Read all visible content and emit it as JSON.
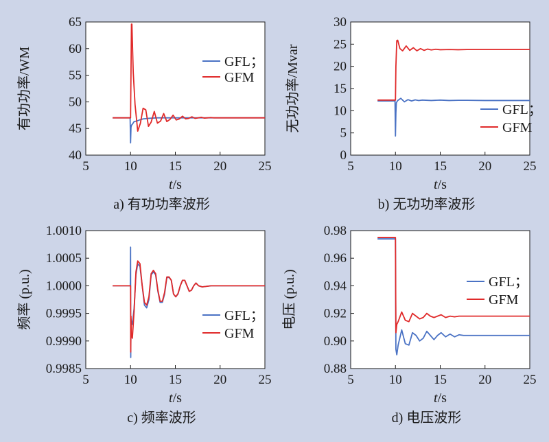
{
  "colors": {
    "background": "#cdd5e8",
    "plot_area": "#ffffff",
    "axis": "#1a1a1a",
    "GFL": "#4a72c4",
    "GFM": "#e02a2a"
  },
  "chart_data": [
    {
      "type": "line",
      "caption": "a) 有功功率波形",
      "xlabel_italic": "t",
      "xlabel_unit": "/s",
      "ylabel": "有功功率/WM",
      "xlim": [
        5,
        25
      ],
      "ylim": [
        40,
        65
      ],
      "xticks": [
        "5",
        "10",
        "15",
        "20",
        "25"
      ],
      "yticks": [
        "40",
        "45",
        "50",
        "55",
        "60",
        "65"
      ],
      "legend": [
        "GFL；",
        "GFM"
      ],
      "legend_position": "center-right",
      "series": [
        {
          "name": "GFL",
          "x": [
            8,
            9.95,
            10.0,
            10.05,
            10.1,
            10.2,
            10.4,
            10.7,
            11.0,
            11.4,
            12.0,
            13,
            14,
            15,
            16,
            17,
            18,
            19,
            20,
            25
          ],
          "y": [
            47,
            47,
            42.3,
            45.2,
            45.6,
            45.8,
            46.3,
            46.4,
            46.6,
            46.8,
            46.9,
            47.0,
            47.0,
            47.0,
            47.0,
            47.0,
            47.0,
            47.0,
            47.0,
            47.0
          ]
        },
        {
          "name": "GFM",
          "x": [
            8,
            9.95,
            10.0,
            10.1,
            10.15,
            10.3,
            10.5,
            10.8,
            11.1,
            11.4,
            11.7,
            12.0,
            12.3,
            12.65,
            13.0,
            13.35,
            13.7,
            14.05,
            14.4,
            14.75,
            15.1,
            15.45,
            15.8,
            16.15,
            16.5,
            16.85,
            17.2,
            17.55,
            17.9,
            18.25,
            18.6,
            18.95,
            19.3,
            20,
            25
          ],
          "y": [
            47,
            47,
            47,
            64.6,
            64.6,
            55.5,
            49.5,
            44.5,
            46.0,
            48.8,
            48.5,
            45.4,
            46.2,
            48.2,
            46.0,
            46.4,
            47.8,
            46.3,
            46.7,
            47.5,
            46.6,
            46.8,
            47.3,
            46.8,
            46.9,
            47.2,
            46.9,
            47.0,
            47.1,
            46.95,
            47.0,
            47.05,
            47.0,
            47.0,
            47.0
          ]
        }
      ]
    },
    {
      "type": "line",
      "caption": "b) 无功功率波形",
      "xlabel_italic": "t",
      "xlabel_unit": "/s",
      "ylabel": "无功功率/Mvar",
      "xlim": [
        5,
        25
      ],
      "ylim": [
        0,
        30
      ],
      "xticks": [
        "5",
        "10",
        "15",
        "20",
        "25"
      ],
      "yticks": [
        "0",
        "5",
        "10",
        "15",
        "20",
        "25",
        "30"
      ],
      "legend": [
        "GFL；",
        "GFM"
      ],
      "legend_position": "lower-right",
      "series": [
        {
          "name": "GFL",
          "x": [
            8,
            9.95,
            10.0,
            10.05,
            10.1,
            10.25,
            10.6,
            11.0,
            11.4,
            11.8,
            12.2,
            12.6,
            13,
            14,
            15,
            16,
            17,
            18,
            20,
            25
          ],
          "y": [
            12.2,
            12.2,
            4.3,
            9.5,
            11.8,
            12.3,
            12.8,
            12.0,
            12.5,
            12.2,
            12.45,
            12.3,
            12.4,
            12.3,
            12.4,
            12.3,
            12.35,
            12.35,
            12.3,
            12.3
          ]
        },
        {
          "name": "GFM",
          "x": [
            8,
            9.95,
            10.0,
            10.05,
            10.15,
            10.25,
            10.5,
            10.8,
            11.2,
            11.6,
            12.0,
            12.4,
            12.8,
            13.2,
            13.6,
            14.0,
            14.5,
            15,
            16,
            17,
            18,
            20,
            25
          ],
          "y": [
            12.4,
            12.4,
            12.4,
            20.0,
            25.8,
            25.9,
            24.0,
            23.5,
            24.6,
            23.6,
            24.2,
            23.5,
            24.0,
            23.6,
            23.9,
            23.7,
            23.85,
            23.75,
            23.8,
            23.75,
            23.8,
            23.8,
            23.8
          ]
        }
      ]
    },
    {
      "type": "line",
      "caption": "c) 频率波形",
      "xlabel_italic": "t",
      "xlabel_unit": "/s",
      "ylabel": "频率 (p.u.)",
      "xlim": [
        5,
        25
      ],
      "ylim": [
        0.9985,
        1.001
      ],
      "xticks": [
        "5",
        "10",
        "15",
        "20",
        "25"
      ],
      "yticks": [
        "0.9985",
        "0.9990",
        "0.9995",
        "1.0000",
        "1.0005",
        "1.0010"
      ],
      "legend": [
        "GFL；",
        "GFM"
      ],
      "legend_position": "lower-right",
      "series": [
        {
          "name": "GFL",
          "x": [
            8,
            9.97,
            10.0,
            10.02,
            10.05,
            10.1,
            10.2,
            10.4,
            10.6,
            10.8,
            11.05,
            11.3,
            11.55,
            11.8,
            12.05,
            12.3,
            12.55,
            12.8,
            13.05,
            13.3,
            13.55,
            13.8,
            14.05,
            14.3,
            14.55,
            14.8,
            15.05,
            15.3,
            15.55,
            15.8,
            16.05,
            16.3,
            16.55,
            16.8,
            17.05,
            17.3,
            17.6,
            18,
            19,
            20,
            25
          ],
          "y": [
            1.0,
            1.0,
            1.0007,
            0.9987,
            0.9994,
            0.99935,
            0.9993,
            0.9996,
            1.0002,
            1.0004,
            1.00035,
            1.0,
            0.99965,
            0.9996,
            0.99975,
            1.0002,
            1.00025,
            1.0002,
            0.9999,
            0.9997,
            0.9997,
            0.99985,
            1.00015,
            1.00015,
            1.0001,
            0.99985,
            0.9998,
            0.99985,
            1.0,
            1.0001,
            1.0001,
            1.0,
            0.9999,
            0.99992,
            1.0,
            1.00005,
            1.0,
            0.99998,
            1.0,
            1.0,
            1.0
          ]
        },
        {
          "name": "GFM",
          "x": [
            8,
            9.97,
            10.0,
            10.02,
            10.05,
            10.1,
            10.2,
            10.4,
            10.6,
            10.8,
            11.05,
            11.3,
            11.55,
            11.8,
            12.05,
            12.3,
            12.55,
            12.8,
            13.05,
            13.3,
            13.55,
            13.8,
            14.05,
            14.3,
            14.55,
            14.8,
            15.05,
            15.3,
            15.55,
            15.8,
            16.05,
            16.3,
            16.55,
            16.8,
            17.05,
            17.3,
            17.6,
            18,
            19,
            20,
            25
          ],
          "y": [
            1.0,
            1.0,
            1.0,
            0.9988,
            0.99945,
            0.9991,
            0.99905,
            0.99955,
            1.00025,
            1.00045,
            1.0004,
            1.0,
            0.9997,
            0.99965,
            0.9998,
            1.00022,
            1.00028,
            1.00022,
            0.99992,
            0.99972,
            0.99972,
            0.99988,
            1.00016,
            1.00016,
            1.0001,
            0.99985,
            0.9998,
            0.99986,
            1.0,
            1.0001,
            1.0001,
            1.0,
            0.9999,
            0.99992,
            1.0,
            1.00005,
            1.0,
            0.99998,
            1.0,
            1.0,
            1.0
          ]
        }
      ]
    },
    {
      "type": "line",
      "caption": "d) 电压波形",
      "xlabel_italic": "t",
      "xlabel_unit": "/s",
      "ylabel": "电压 (p.u.)",
      "xlim": [
        5,
        25
      ],
      "ylim": [
        0.88,
        0.98
      ],
      "xticks": [
        "5",
        "10",
        "15",
        "20",
        "25"
      ],
      "yticks": [
        "0.88",
        "0.90",
        "0.92",
        "0.94",
        "0.96",
        "0.98"
      ],
      "legend": [
        "GFL；",
        "GFM"
      ],
      "legend_position": "center-right",
      "series": [
        {
          "name": "GFL",
          "x": [
            8,
            9.95,
            10.0,
            10.05,
            10.15,
            10.3,
            10.7,
            11.1,
            11.5,
            11.9,
            12.3,
            12.7,
            13.1,
            13.5,
            13.9,
            14.3,
            14.7,
            15.1,
            15.6,
            16.1,
            16.6,
            17.1,
            17.6,
            18.5,
            20,
            25
          ],
          "y": [
            0.974,
            0.974,
            0.974,
            0.894,
            0.89,
            0.897,
            0.908,
            0.898,
            0.897,
            0.906,
            0.904,
            0.9,
            0.902,
            0.907,
            0.904,
            0.901,
            0.904,
            0.906,
            0.903,
            0.905,
            0.903,
            0.9045,
            0.904,
            0.904,
            0.904,
            0.904
          ]
        },
        {
          "name": "GFM",
          "x": [
            8,
            9.95,
            10.0,
            10.05,
            10.15,
            10.3,
            10.7,
            11.1,
            11.5,
            11.9,
            12.3,
            12.7,
            13.1,
            13.5,
            13.9,
            14.3,
            14.7,
            15.1,
            15.6,
            16.1,
            16.6,
            17.1,
            17.6,
            18.5,
            20,
            25
          ],
          "y": [
            0.975,
            0.975,
            0.975,
            0.906,
            0.912,
            0.914,
            0.921,
            0.915,
            0.914,
            0.92,
            0.918,
            0.916,
            0.917,
            0.92,
            0.918,
            0.917,
            0.918,
            0.919,
            0.917,
            0.918,
            0.9175,
            0.918,
            0.918,
            0.918,
            0.918,
            0.918
          ]
        }
      ]
    }
  ]
}
